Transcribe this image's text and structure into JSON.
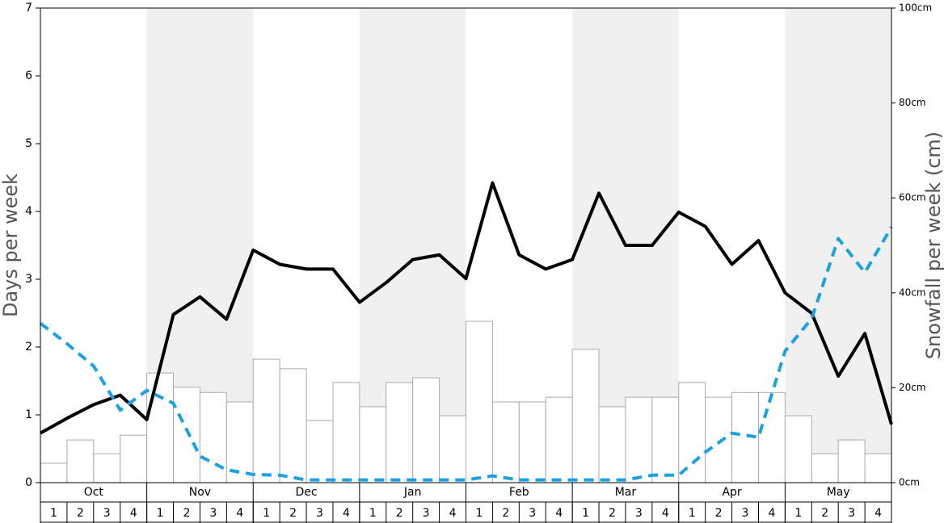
{
  "chart_data": {
    "type": "bar",
    "ylabel": "Days per week",
    "y2label": "Snowfall per week (cm)",
    "months": [
      "Oct",
      "Nov",
      "Dec",
      "Jan",
      "Feb",
      "Mar",
      "Apr",
      "May"
    ],
    "categories": [
      "1",
      "2",
      "3",
      "4",
      "1",
      "2",
      "3",
      "4",
      "1",
      "2",
      "3",
      "4",
      "1",
      "2",
      "3",
      "4",
      "1",
      "2",
      "3",
      "4",
      "1",
      "2",
      "3",
      "4",
      "1",
      "2",
      "3",
      "4",
      "1",
      "2",
      "3",
      "4"
    ],
    "xlim": [
      0,
      32
    ],
    "ylim": [
      0,
      7
    ],
    "yticks": [
      0,
      1,
      2,
      3,
      4,
      5,
      6,
      7
    ],
    "y2lim": [
      0,
      100
    ],
    "y2ticks": [
      {
        "value": 0,
        "label": "0cm"
      },
      {
        "value": 20,
        "label": "20cm"
      },
      {
        "value": 40,
        "label": "40cm"
      },
      {
        "value": 60,
        "label": "60cm"
      },
      {
        "value": 80,
        "label": "80cm"
      },
      {
        "value": 100,
        "label": "100cm"
      }
    ],
    "series": [
      {
        "type": "bar",
        "axis": "y2",
        "color": "#ffffff",
        "values": [
          4.1,
          9.0,
          6.1,
          10.0,
          23.1,
          20.1,
          19.0,
          17.0,
          26.0,
          24.0,
          13.1,
          21.1,
          16.0,
          21.1,
          22.1,
          14.1,
          34.0,
          17.0,
          17.0,
          18.0,
          28.1,
          16.0,
          18.0,
          18.0,
          21.1,
          18.0,
          19.0,
          19.0,
          14.1,
          6.1,
          9.0,
          6.1
        ]
      },
      {
        "type": "line",
        "color": "#000000",
        "x": [
          0,
          1,
          2,
          3,
          4,
          5,
          6,
          7,
          8,
          9,
          10,
          11,
          12,
          13,
          14,
          15,
          16,
          17,
          18,
          19,
          20,
          21,
          22,
          23,
          24,
          25,
          26,
          27,
          28,
          29,
          30,
          31,
          32
        ],
        "values": [
          0.73,
          0.95,
          1.15,
          1.29,
          0.93,
          2.48,
          2.74,
          2.41,
          3.43,
          3.22,
          3.15,
          3.15,
          2.66,
          2.95,
          3.29,
          3.36,
          3.01,
          4.42,
          3.36,
          3.15,
          3.29,
          4.27,
          3.5,
          3.5,
          3.99,
          3.78,
          3.22,
          3.57,
          2.8,
          2.5,
          1.57,
          2.2,
          0.86
        ]
      },
      {
        "type": "line",
        "dashed": true,
        "color": "#1ba1e2",
        "x": [
          0,
          1,
          2,
          3,
          4,
          5,
          6,
          7,
          8,
          9,
          10,
          11,
          12,
          13,
          14,
          15,
          16,
          17,
          18,
          19,
          20,
          21,
          22,
          23,
          24,
          25,
          26,
          27,
          28,
          29,
          30,
          31,
          32
        ],
        "values": [
          2.35,
          2.05,
          1.72,
          1.07,
          1.36,
          1.17,
          0.39,
          0.19,
          0.12,
          0.11,
          0.04,
          0.04,
          0.04,
          0.04,
          0.04,
          0.04,
          0.04,
          0.1,
          0.04,
          0.04,
          0.04,
          0.04,
          0.04,
          0.11,
          0.11,
          0.45,
          0.73,
          0.67,
          1.94,
          2.42,
          3.6,
          3.1,
          3.77
        ]
      }
    ]
  }
}
